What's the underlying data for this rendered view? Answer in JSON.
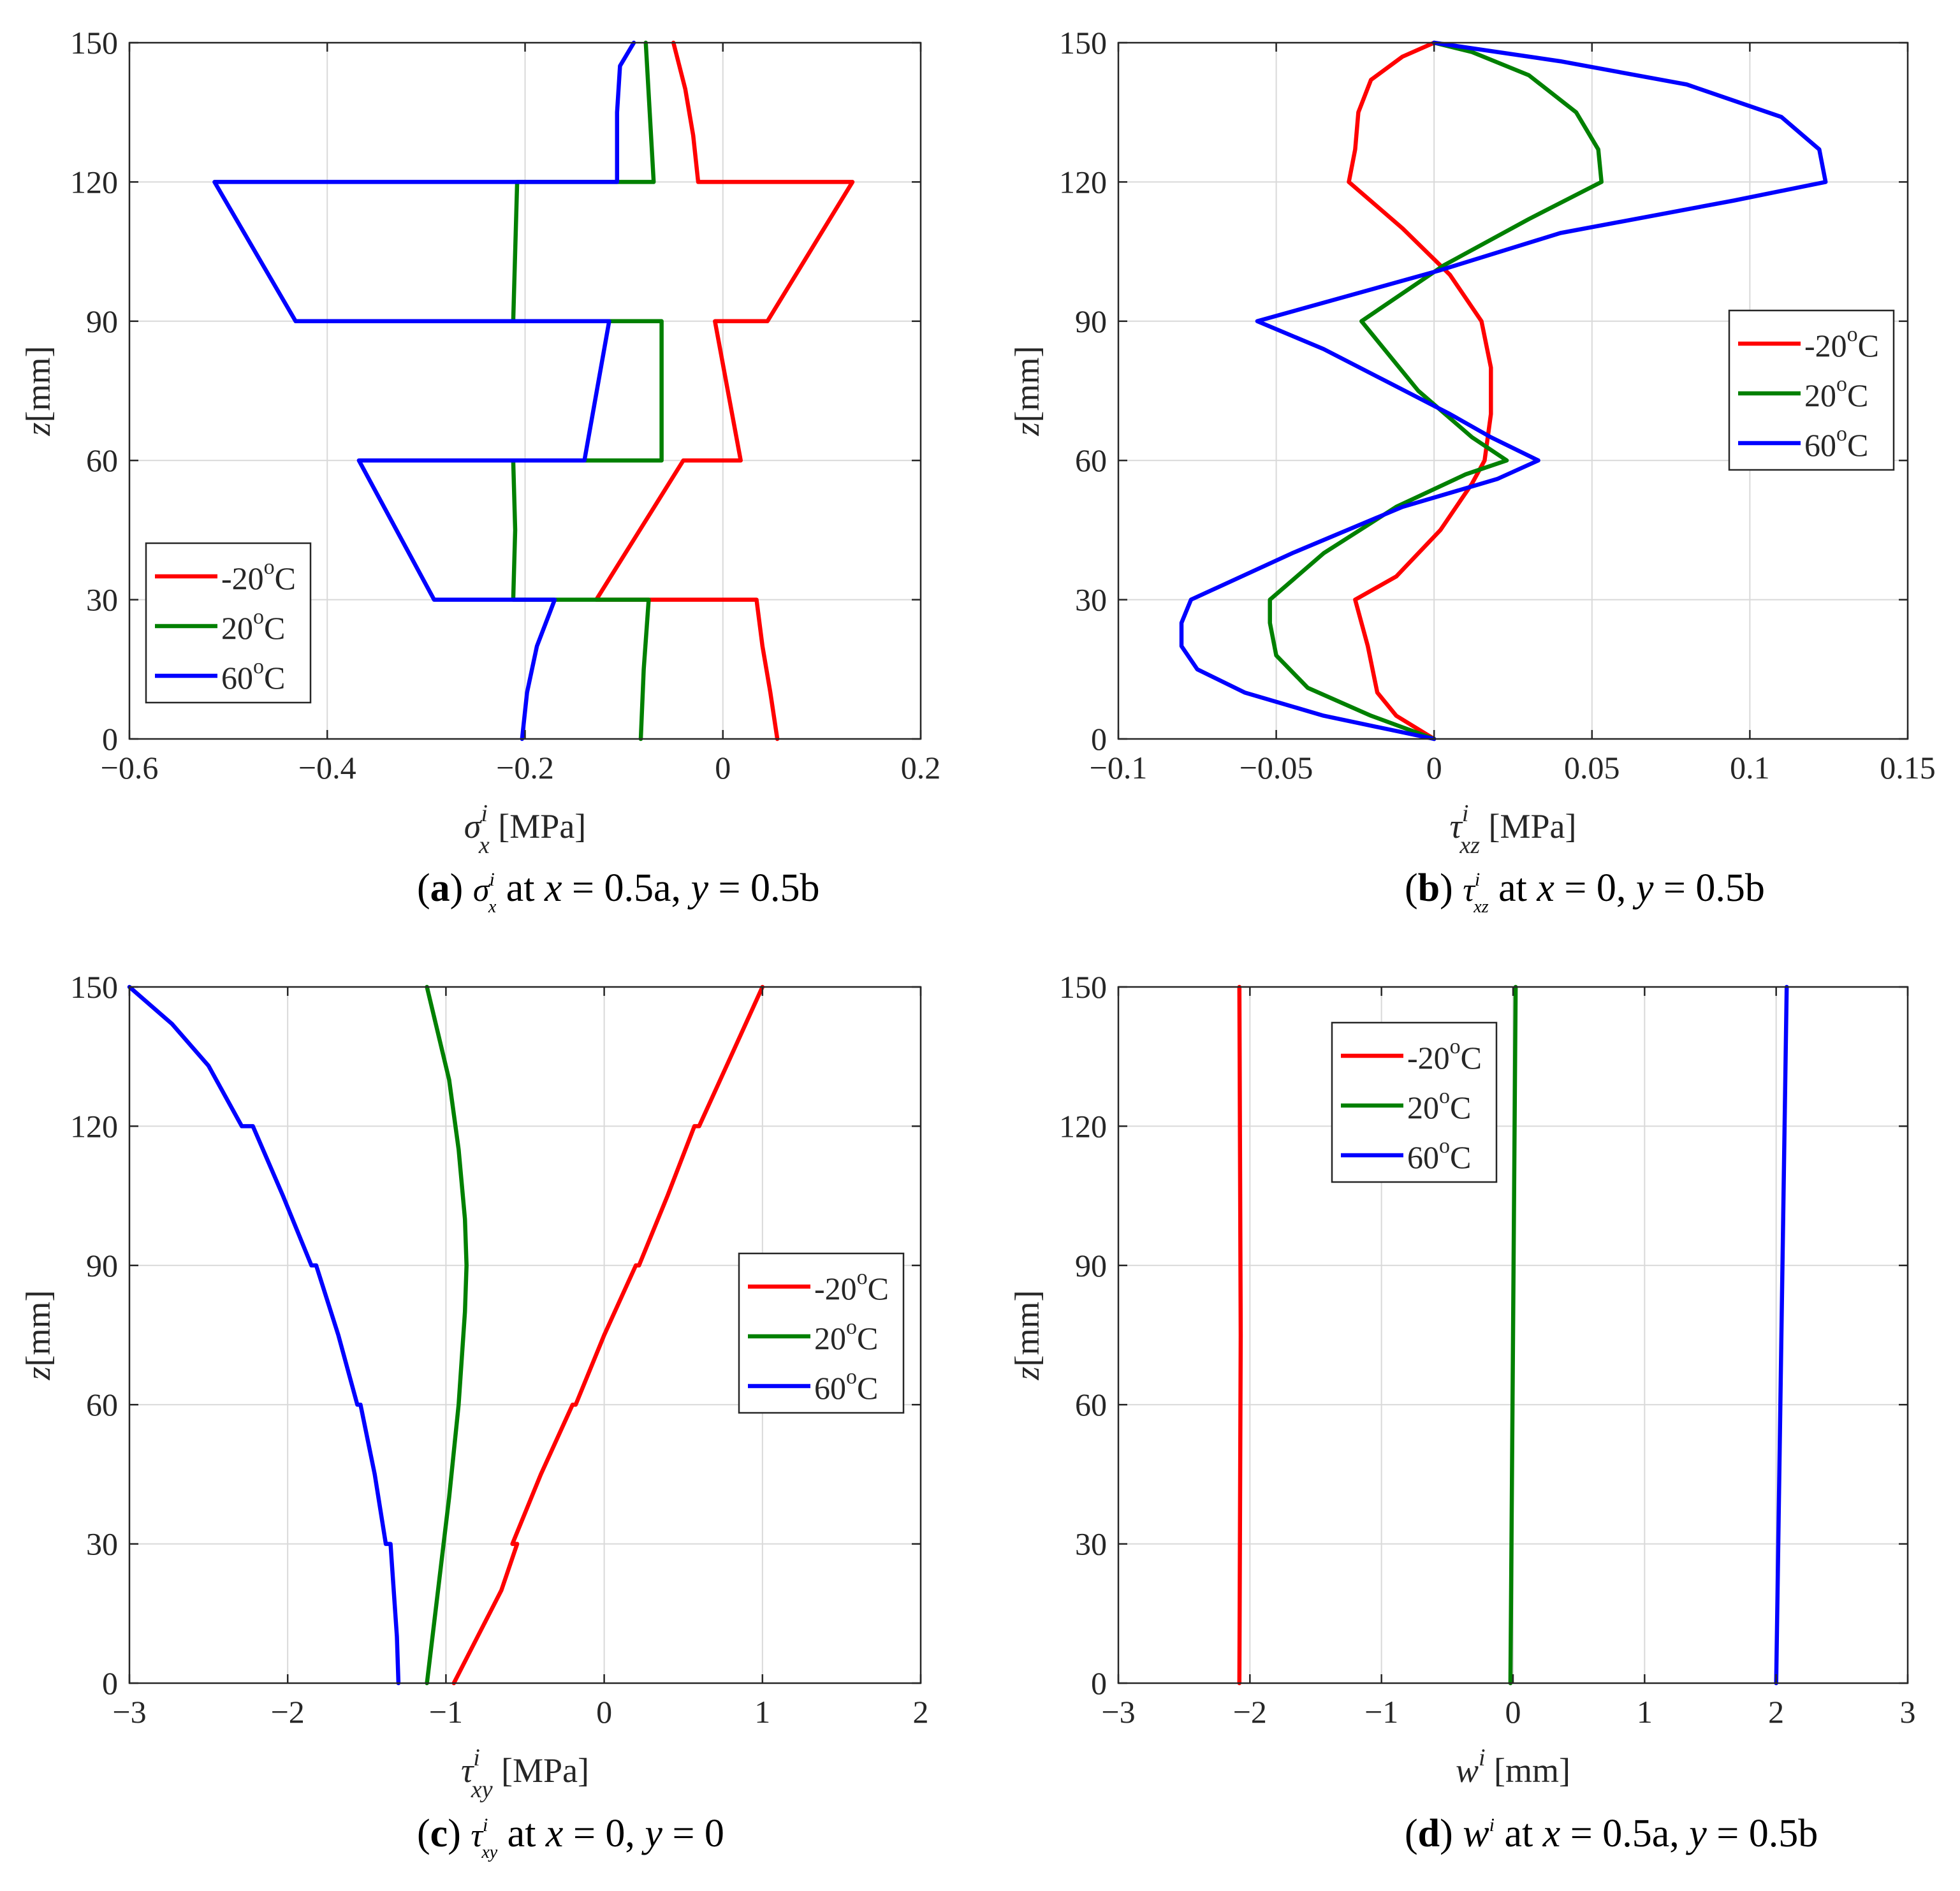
{
  "colors": {
    "red": "#ff0000",
    "green": "#008000",
    "blue": "#0000ff",
    "grid": "#d9d9d9",
    "axis": "#262626"
  },
  "legend_labels": [
    "-20°C",
    "20°C",
    "60°C"
  ],
  "chart_data": [
    {
      "id": "a",
      "type": "line",
      "caption": {
        "letter": "(a)",
        "symbol": "σ",
        "sub": "x",
        "sup": "i",
        "where": "at x = 0.5a, y = 0.5b"
      },
      "xlabel": {
        "symbol": "σ",
        "sub": "x",
        "sup": "i",
        "unit": "[MPa]"
      },
      "ylabel": {
        "symbol": "z",
        "unit": "[mm]"
      },
      "xlim": [
        -0.6,
        0.2
      ],
      "ylim": [
        0,
        150
      ],
      "xticks": [
        -0.6,
        -0.4,
        -0.2,
        0,
        0.2
      ],
      "xtick_labels": [
        "−0.6",
        "−0.4",
        "−0.2",
        "0",
        "0.2"
      ],
      "yticks": [
        0,
        30,
        60,
        90,
        120,
        150
      ],
      "ytick_labels": [
        "0",
        "30",
        "60",
        "90",
        "120",
        "150"
      ],
      "grid": true,
      "legend_position": "lower-left",
      "series": [
        {
          "name": "-20°C",
          "color": "red",
          "points": [
            [
              0.055,
              0
            ],
            [
              0.048,
              10
            ],
            [
              0.04,
              20
            ],
            [
              0.034,
              30
            ],
            [
              -0.128,
              30
            ],
            [
              -0.04,
              60
            ],
            [
              0.018,
              60
            ],
            [
              -0.008,
              90
            ],
            [
              0.045,
              90
            ],
            [
              0.131,
              120
            ],
            [
              -0.025,
              120
            ],
            [
              -0.03,
              130
            ],
            [
              -0.038,
              140
            ],
            [
              -0.05,
              150
            ]
          ]
        },
        {
          "name": "20°C",
          "color": "green",
          "points": [
            [
              -0.083,
              0
            ],
            [
              -0.08,
              15
            ],
            [
              -0.075,
              30
            ],
            [
              -0.212,
              30
            ],
            [
              -0.21,
              45
            ],
            [
              -0.212,
              60
            ],
            [
              -0.062,
              60
            ],
            [
              -0.062,
              75
            ],
            [
              -0.062,
              90
            ],
            [
              -0.212,
              90
            ],
            [
              -0.21,
              105
            ],
            [
              -0.208,
              120
            ],
            [
              -0.07,
              120
            ],
            [
              -0.074,
              135
            ],
            [
              -0.078,
              150
            ]
          ]
        },
        {
          "name": "60°C",
          "color": "blue",
          "points": [
            [
              -0.203,
              0
            ],
            [
              -0.198,
              10
            ],
            [
              -0.188,
              20
            ],
            [
              -0.17,
              30
            ],
            [
              -0.292,
              30
            ],
            [
              -0.368,
              60
            ],
            [
              -0.14,
              60
            ],
            [
              -0.115,
              90
            ],
            [
              -0.432,
              90
            ],
            [
              -0.514,
              120
            ],
            [
              -0.107,
              120
            ],
            [
              -0.107,
              135
            ],
            [
              -0.104,
              145
            ],
            [
              -0.09,
              150
            ]
          ]
        }
      ]
    },
    {
      "id": "b",
      "type": "line",
      "caption": {
        "letter": "(b)",
        "symbol": "τ",
        "sub": "xz",
        "sup": "i",
        "where": "at x = 0, y = 0.5b"
      },
      "xlabel": {
        "symbol": "τ",
        "sub": "xz",
        "sup": "i",
        "unit": "[MPa]"
      },
      "ylabel": {
        "symbol": "z",
        "unit": "[mm]"
      },
      "xlim": [
        -0.1,
        0.15
      ],
      "ylim": [
        0,
        150
      ],
      "xticks": [
        -0.1,
        -0.05,
        0,
        0.05,
        0.1,
        0.15
      ],
      "xtick_labels": [
        "−0.1",
        "−0.05",
        "0",
        "0.05",
        "0.1",
        "0.15"
      ],
      "yticks": [
        0,
        30,
        60,
        90,
        120,
        150
      ],
      "ytick_labels": [
        "0",
        "30",
        "60",
        "90",
        "120",
        "150"
      ],
      "grid": true,
      "legend_position": "right",
      "series": [
        {
          "name": "-20°C",
          "color": "red",
          "points": [
            [
              0,
              0
            ],
            [
              -0.012,
              5
            ],
            [
              -0.018,
              10
            ],
            [
              -0.021,
              20
            ],
            [
              -0.025,
              30
            ],
            [
              -0.012,
              35
            ],
            [
              0.002,
              45
            ],
            [
              0.012,
              55
            ],
            [
              0.016,
              60
            ],
            [
              0.018,
              70
            ],
            [
              0.018,
              80
            ],
            [
              0.015,
              90
            ],
            [
              0.005,
              100
            ],
            [
              -0.01,
              110
            ],
            [
              -0.027,
              120
            ],
            [
              -0.025,
              127
            ],
            [
              -0.024,
              135
            ],
            [
              -0.02,
              142
            ],
            [
              -0.01,
              147
            ],
            [
              0,
              150
            ]
          ]
        },
        {
          "name": "20°C",
          "color": "green",
          "points": [
            [
              0,
              0
            ],
            [
              -0.02,
              5
            ],
            [
              -0.04,
              11
            ],
            [
              -0.05,
              18
            ],
            [
              -0.052,
              25
            ],
            [
              -0.052,
              30
            ],
            [
              -0.035,
              40
            ],
            [
              -0.012,
              50
            ],
            [
              0.01,
              57
            ],
            [
              0.023,
              60
            ],
            [
              0.012,
              65
            ],
            [
              -0.005,
              75
            ],
            [
              -0.023,
              90
            ],
            [
              0.003,
              102
            ],
            [
              0.03,
              112
            ],
            [
              0.053,
              120
            ],
            [
              0.052,
              127
            ],
            [
              0.045,
              135
            ],
            [
              0.03,
              143
            ],
            [
              0.012,
              148
            ],
            [
              0,
              150
            ]
          ]
        },
        {
          "name": "60°C",
          "color": "blue",
          "points": [
            [
              0,
              0
            ],
            [
              -0.035,
              5
            ],
            [
              -0.06,
              10
            ],
            [
              -0.075,
              15
            ],
            [
              -0.08,
              20
            ],
            [
              -0.08,
              25
            ],
            [
              -0.077,
              30
            ],
            [
              -0.045,
              40
            ],
            [
              -0.01,
              50
            ],
            [
              0.02,
              56
            ],
            [
              0.033,
              60
            ],
            [
              0.018,
              65
            ],
            [
              0.005,
              70
            ],
            [
              -0.015,
              77
            ],
            [
              -0.035,
              84
            ],
            [
              -0.056,
              90
            ],
            [
              0.002,
              101
            ],
            [
              0.04,
              109
            ],
            [
              0.095,
              116
            ],
            [
              0.124,
              120
            ],
            [
              0.122,
              127
            ],
            [
              0.11,
              134
            ],
            [
              0.08,
              141
            ],
            [
              0.04,
              146
            ],
            [
              0,
              150
            ]
          ]
        }
      ]
    },
    {
      "id": "c",
      "type": "line",
      "caption": {
        "letter": "(c)",
        "symbol": "τ",
        "sub": "xy",
        "sup": "i",
        "where": "at x = 0, y = 0"
      },
      "xlabel": {
        "symbol": "τ",
        "sub": "xy",
        "sup": "i",
        "unit": "[MPa]"
      },
      "ylabel": {
        "symbol": "z",
        "unit": "[mm]"
      },
      "xlim": [
        -3,
        2
      ],
      "ylim": [
        0,
        150
      ],
      "xticks": [
        -3,
        -2,
        -1,
        0,
        1,
        2
      ],
      "xtick_labels": [
        "−3",
        "−2",
        "−1",
        "0",
        "1",
        "2"
      ],
      "yticks": [
        0,
        30,
        60,
        90,
        120,
        150
      ],
      "ytick_labels": [
        "0",
        "30",
        "60",
        "90",
        "120",
        "150"
      ],
      "grid": true,
      "legend_position": "right",
      "series": [
        {
          "name": "-20°C",
          "color": "red",
          "points": [
            [
              -0.95,
              0
            ],
            [
              -0.8,
              10
            ],
            [
              -0.65,
              20
            ],
            [
              -0.55,
              30
            ],
            [
              -0.58,
              30
            ],
            [
              -0.4,
              45
            ],
            [
              -0.2,
              60
            ],
            [
              -0.18,
              60
            ],
            [
              0,
              75
            ],
            [
              0.2,
              90
            ],
            [
              0.22,
              90
            ],
            [
              0.4,
              105
            ],
            [
              0.57,
              120
            ],
            [
              0.6,
              120
            ],
            [
              0.8,
              135
            ],
            [
              1.0,
              150
            ]
          ]
        },
        {
          "name": "20°C",
          "color": "green",
          "points": [
            [
              -1.12,
              0
            ],
            [
              -1.05,
              20
            ],
            [
              -0.98,
              40
            ],
            [
              -0.92,
              60
            ],
            [
              -0.88,
              80
            ],
            [
              -0.87,
              90
            ],
            [
              -0.88,
              100
            ],
            [
              -0.92,
              115
            ],
            [
              -0.98,
              130
            ],
            [
              -1.05,
              140
            ],
            [
              -1.12,
              150
            ]
          ]
        },
        {
          "name": "60°C",
          "color": "blue",
          "points": [
            [
              -1.3,
              0
            ],
            [
              -1.31,
              10
            ],
            [
              -1.33,
              20
            ],
            [
              -1.35,
              30
            ],
            [
              -1.38,
              30
            ],
            [
              -1.45,
              45
            ],
            [
              -1.54,
              60
            ],
            [
              -1.56,
              60
            ],
            [
              -1.68,
              75
            ],
            [
              -1.82,
              90
            ],
            [
              -1.85,
              90
            ],
            [
              -2.03,
              105
            ],
            [
              -2.22,
              120
            ],
            [
              -2.29,
              120
            ],
            [
              -2.5,
              133
            ],
            [
              -2.73,
              142
            ],
            [
              -3.0,
              150
            ]
          ]
        }
      ]
    },
    {
      "id": "d",
      "type": "line",
      "caption": {
        "letter": "(d)",
        "symbol": "w",
        "sub": "",
        "sup": "i",
        "where": "at x = 0.5a, y = 0.5b"
      },
      "xlabel": {
        "symbol": "w",
        "sub": "",
        "sup": "i",
        "unit": "[mm]"
      },
      "ylabel": {
        "symbol": "z",
        "unit": "[mm]"
      },
      "xlim": [
        -3,
        3
      ],
      "ylim": [
        0,
        150
      ],
      "xticks": [
        -3,
        -2,
        -1,
        0,
        1,
        2,
        3
      ],
      "xtick_labels": [
        "−3",
        "−2",
        "−1",
        "0",
        "1",
        "2",
        "3"
      ],
      "yticks": [
        0,
        30,
        60,
        90,
        120,
        150
      ],
      "ytick_labels": [
        "0",
        "30",
        "60",
        "90",
        "120",
        "150"
      ],
      "grid": true,
      "legend_position": "top-left",
      "series": [
        {
          "name": "-20°C",
          "color": "red",
          "points": [
            [
              -2.08,
              0
            ],
            [
              -2.07,
              75
            ],
            [
              -2.08,
              150
            ]
          ]
        },
        {
          "name": "20°C",
          "color": "green",
          "points": [
            [
              -0.02,
              0
            ],
            [
              0.0,
              75
            ],
            [
              0.02,
              150
            ]
          ]
        },
        {
          "name": "60°C",
          "color": "blue",
          "points": [
            [
              2.0,
              0
            ],
            [
              2.04,
              75
            ],
            [
              2.08,
              150
            ]
          ]
        }
      ]
    }
  ]
}
